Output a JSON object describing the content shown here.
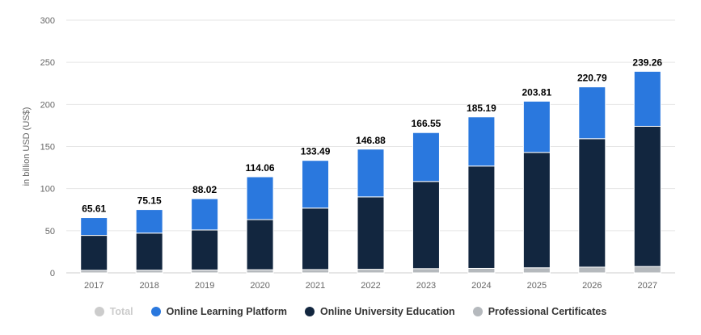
{
  "chart_data": {
    "type": "bar",
    "stacked": true,
    "categories": [
      "2017",
      "2018",
      "2019",
      "2020",
      "2021",
      "2022",
      "2023",
      "2024",
      "2025",
      "2026",
      "2027"
    ],
    "series": [
      {
        "name": "Professional Certificates",
        "color": "#b5b9bd",
        "values": [
          3.0,
          3.2,
          3.4,
          3.7,
          3.9,
          4.2,
          5.0,
          5.3,
          6.0,
          6.8,
          7.5
        ]
      },
      {
        "name": "Online University Education",
        "color": "#12263f",
        "values": [
          41.5,
          44.0,
          47.5,
          59.5,
          73.0,
          86.0,
          103.5,
          121.5,
          137.0,
          152.5,
          166.5
        ]
      },
      {
        "name": "Online Learning Platform",
        "color": "#2a78de",
        "values": [
          21.11,
          27.95,
          37.12,
          50.86,
          56.59,
          56.68,
          58.05,
          58.39,
          60.81,
          61.49,
          65.26
        ]
      }
    ],
    "totals": {
      "name": "Total",
      "labels": [
        "65.61",
        "75.15",
        "88.02",
        "114.06",
        "133.49",
        "146.88",
        "166.55",
        "185.19",
        "203.81",
        "220.79",
        "239.26"
      ]
    },
    "ylabel": "in billion USD (US$)",
    "ylim": [
      0,
      300
    ],
    "yticks": [
      "0",
      "50",
      "100",
      "150",
      "200",
      "250",
      "300"
    ],
    "grid": true,
    "legend_position": "bottom"
  },
  "legend": [
    {
      "label": "Total",
      "color": "#cccccc",
      "hidden": true
    },
    {
      "label": "Online Learning Platform",
      "color": "#2a78de",
      "hidden": false
    },
    {
      "label": "Online University Education",
      "color": "#12263f",
      "hidden": false
    },
    {
      "label": "Professional Certificates",
      "color": "#b5b9bd",
      "hidden": false
    }
  ]
}
